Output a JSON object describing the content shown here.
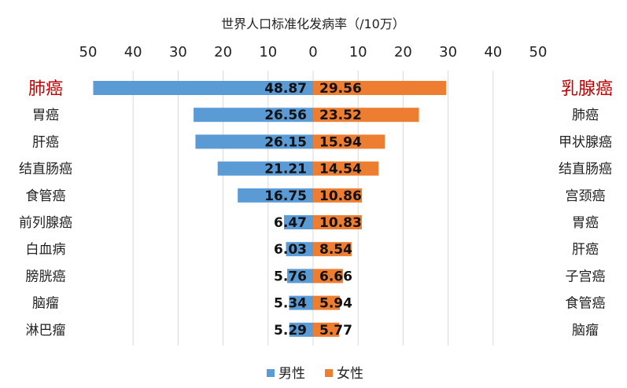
{
  "chart_data": {
    "type": "bar",
    "title": "世界人口标准化发病率（/10万）",
    "axis_ticks": [
      "50",
      "40",
      "30",
      "20",
      "10",
      "0",
      "10",
      "20",
      "30",
      "40",
      "50"
    ],
    "xlim": [
      -50,
      50
    ],
    "legend_position": "bottom",
    "series": [
      {
        "name": "男性",
        "color": "#5b9bd5",
        "side": "left",
        "categories": [
          "肺癌",
          "胃癌",
          "肝癌",
          "结直肠癌",
          "食管癌",
          "前列腺癌",
          "白血病",
          "膀胱癌",
          "脑瘤",
          "淋巴瘤"
        ],
        "values": [
          48.87,
          26.56,
          26.15,
          21.21,
          16.75,
          6.47,
          6.03,
          5.76,
          5.34,
          5.29
        ],
        "labels": [
          "48.87",
          "26.56",
          "26.15",
          "21.21",
          "16.75",
          "6.47",
          "6.03",
          "5.76",
          "5.34",
          "5.29"
        ]
      },
      {
        "name": "女性",
        "color": "#ed7d31",
        "side": "right",
        "categories": [
          "乳腺癌",
          "肺癌",
          "甲状腺癌",
          "结直肠癌",
          "宫颈癌",
          "胃癌",
          "肝癌",
          "子宫癌",
          "食管癌",
          "脑瘤"
        ],
        "values": [
          29.56,
          23.52,
          15.94,
          14.54,
          10.86,
          10.83,
          8.54,
          6.66,
          5.94,
          5.77
        ],
        "labels": [
          "29.56",
          "23.52",
          "15.94",
          "14.54",
          "10.86",
          "10.83",
          "8.54",
          "6.66",
          "5.94",
          "5.77"
        ]
      }
    ],
    "highlight_color": "#c00000"
  }
}
